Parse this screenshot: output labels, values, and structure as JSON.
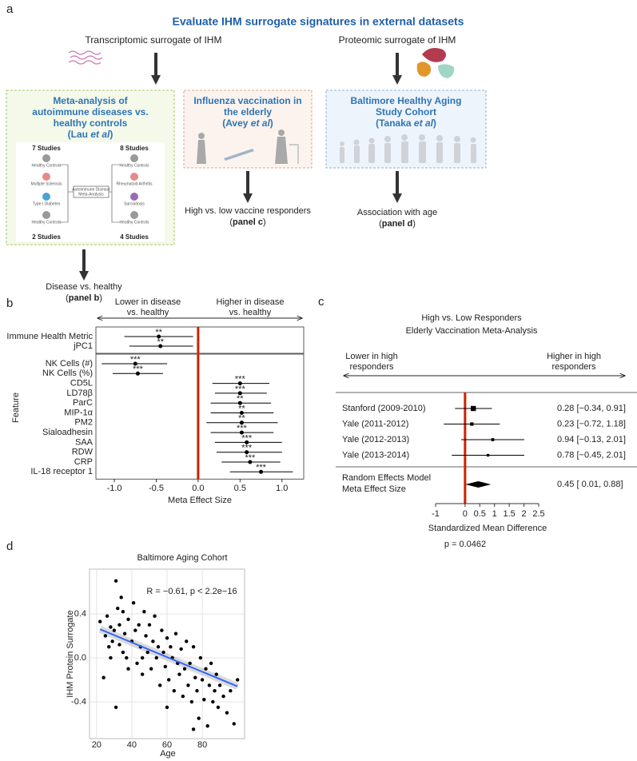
{
  "panel_labels": [
    "a",
    "b",
    "c",
    "d"
  ],
  "panel_a": {
    "title": "Evaluate IHM surrogate signatures in external datasets",
    "transcriptomic": "Transcriptomic surrogate of IHM",
    "proteomic": "Proteomic surrogate of IHM",
    "lau": {
      "lines": [
        "Meta-analysis of",
        "autoimmune diseases vs.",
        "healthy controls"
      ],
      "citation": [
        "(Lau ",
        "et al",
        ")"
      ],
      "study_counts": [
        "7 Studies",
        "8 Studies",
        "2 Studies",
        "4 Studies"
      ],
      "groups": [
        "Healthy Controls",
        "Multiple Sclerosis",
        "Type I Diabetes",
        "Healthy Controls",
        "Healthy Controls",
        "Rheumatoid Arthritis",
        "Sarcoidosis",
        "Healthy Controls"
      ],
      "center": [
        "Autoimmune Disease",
        "Meta-Analysis"
      ]
    },
    "avey": {
      "lines": [
        "Influenza vaccination in",
        "the elderly"
      ],
      "citation": [
        "(Avey ",
        "et al",
        ")"
      ]
    },
    "tanaka": {
      "lines": [
        "Baltimore Healthy Aging",
        "Study Cohort"
      ],
      "citation": [
        "(Tanaka ",
        "et al",
        ")"
      ]
    },
    "outcome_c": [
      "High vs. low vaccine responders",
      "(",
      "panel c",
      ")"
    ],
    "outcome_d": [
      "Association with age",
      "(",
      "panel d",
      ")"
    ],
    "outcome_b": [
      "Disease vs. healthy",
      "(",
      "panel b",
      ")"
    ]
  },
  "chart_data": [
    {
      "type": "forest",
      "header_left": [
        "Lower in disease",
        "vs. healthy"
      ],
      "header_right": [
        "Higher in disease",
        "vs. healthy"
      ],
      "xlabel": "Meta Effect Size",
      "ylabel": "Feature",
      "categories": [
        "Immune Health Metric",
        "jPC1",
        "NK Cells (#)",
        "NK Cells (%)",
        "CD5L",
        "LD78β",
        "ParC",
        "MIP-1α",
        "PM2",
        "Sialoadhesin",
        "SAA",
        "RDW",
        "CRP",
        "IL-18 receptor 1"
      ],
      "facets": [
        0,
        0,
        1,
        1,
        1,
        1,
        1,
        1,
        1,
        1,
        1,
        1,
        1,
        1
      ],
      "values": [
        -0.47,
        -0.45,
        -0.75,
        -0.72,
        0.5,
        0.5,
        0.5,
        0.52,
        0.52,
        0.52,
        0.58,
        0.58,
        0.62,
        0.75
      ],
      "lower": [
        -0.88,
        -0.82,
        -1.15,
        -1.02,
        0.17,
        0.2,
        0.15,
        0.15,
        0.1,
        0.15,
        0.2,
        0.22,
        0.28,
        0.38
      ],
      "upper": [
        -0.06,
        -0.06,
        -0.37,
        -0.42,
        0.85,
        0.82,
        0.87,
        0.9,
        0.95,
        0.9,
        1.0,
        1.0,
        0.98,
        1.13
      ],
      "significance": [
        "**",
        "**",
        "***",
        "***",
        "***",
        "***",
        "**",
        "**",
        "**",
        "***",
        "***",
        "***",
        "***",
        "***"
      ],
      "xlim": [
        -1.22,
        1.26
      ],
      "xticks": [
        {
          "value": -1,
          "label": "-1.0"
        },
        -0.5,
        {
          "value": 0,
          "label": "0.0"
        },
        0.5,
        {
          "value": 1,
          "label": "1.0"
        }
      ],
      "reference_line": 0,
      "reference_color": "#cc2200",
      "color": "#000000"
    },
    {
      "type": "meta-forest",
      "title": [
        "High vs. Low Responders",
        "Elderly Vaccination Meta-Analysis"
      ],
      "header_left": [
        "Lower in high",
        "responders"
      ],
      "header_right": [
        "Higher in high",
        "responders"
      ],
      "categories": [
        "Stanford (2009-2010)",
        "Yale (2011-2012)",
        "Yale (2012-2013)",
        "Yale (2013-2014)"
      ],
      "values": [
        0.28,
        0.23,
        0.94,
        0.78
      ],
      "lower": [
        -0.34,
        -0.72,
        -0.13,
        -0.45
      ],
      "upper": [
        0.91,
        1.18,
        2.01,
        2.01
      ],
      "value_labels": [
        "0.28 [−0.34, 0.91]",
        "0.23 [−0.72, 1.18]",
        "0.94 [−0.13, 2.01]",
        "0.78 [−0.45, 2.01]"
      ],
      "summary": {
        "name": [
          "Random Effects Model",
          "Meta Effect Size"
        ],
        "value": 0.45,
        "lower": 0.01,
        "upper": 0.88,
        "value_label": "0.45 [ 0.01, 0.88]"
      },
      "xlabel": "Standardized Mean Difference",
      "note": "p = 0.0462",
      "xlim": [
        -1,
        2.5
      ],
      "xticks": [
        -1,
        0,
        0.5,
        1,
        1.5,
        2,
        2.5
      ],
      "reference_line": 0,
      "reference_color": "#cc2200",
      "color": "#000000"
    },
    {
      "type": "scatter",
      "title": "Baltimore Aging Cohort",
      "xlabel": "Age",
      "ylabel": "IHM Protein Surrogate",
      "annotation": "R = −0.61, p < 2.2e−16",
      "x": [
        22,
        24,
        25,
        26,
        27,
        28,
        28,
        29,
        30,
        31,
        31,
        32,
        33,
        33,
        34,
        35,
        35,
        36,
        37,
        38,
        38,
        40,
        41,
        42,
        43,
        44,
        45,
        46,
        47,
        48,
        49,
        50,
        51,
        52,
        53,
        54,
        55,
        56,
        57,
        58,
        59,
        60,
        61,
        62,
        63,
        64,
        65,
        66,
        67,
        68,
        69,
        70,
        71,
        72,
        73,
        74,
        75,
        76,
        77,
        78,
        79,
        80,
        81,
        82,
        83,
        84,
        85,
        86,
        87,
        88,
        89,
        90,
        92,
        94,
        96,
        98,
        100,
        46,
        75,
        60
      ],
      "y": [
        0.33,
        -0.18,
        0.2,
        0.38,
        0.1,
        0.28,
        0.0,
        0.15,
        0.25,
        0.7,
        -0.45,
        0.45,
        0.12,
        0.3,
        0.55,
        0.05,
        0.42,
        0.22,
        0.0,
        0.35,
        -0.1,
        0.15,
        0.5,
        0.25,
        -0.05,
        0.3,
        0.1,
        -0.15,
        0.42,
        0.2,
        0.05,
        0.3,
        -0.1,
        0.15,
        0.38,
        0.0,
        0.1,
        -0.25,
        0.25,
        0.05,
        -0.08,
        0.18,
        -0.2,
        0.1,
        0.0,
        -0.3,
        0.22,
        -0.05,
        -0.15,
        0.08,
        -0.35,
        -0.1,
        0.15,
        -0.25,
        -0.05,
        -0.4,
        0.1,
        -0.18,
        -0.3,
        -0.55,
        0.0,
        -0.2,
        -0.38,
        -0.1,
        -0.62,
        -0.25,
        -0.05,
        -0.4,
        -0.3,
        -0.15,
        -0.45,
        -0.25,
        -0.35,
        -0.5,
        -0.3,
        -0.6,
        -0.2,
        0.0,
        -0.65,
        -0.45
      ],
      "fit": {
        "x": [
          22,
          100
        ],
        "y": [
          0.26,
          -0.26
        ]
      },
      "fit_color": "#3366ff",
      "color": "#000000",
      "xlim": [
        16,
        104
      ],
      "ylim": [
        -0.735,
        0.807
      ],
      "xticks": [
        20,
        40,
        60,
        80
      ],
      "yticks": [
        -0.4,
        {
          "value": 0,
          "label": "0.0"
        },
        0.4
      ],
      "grid": true
    }
  ]
}
